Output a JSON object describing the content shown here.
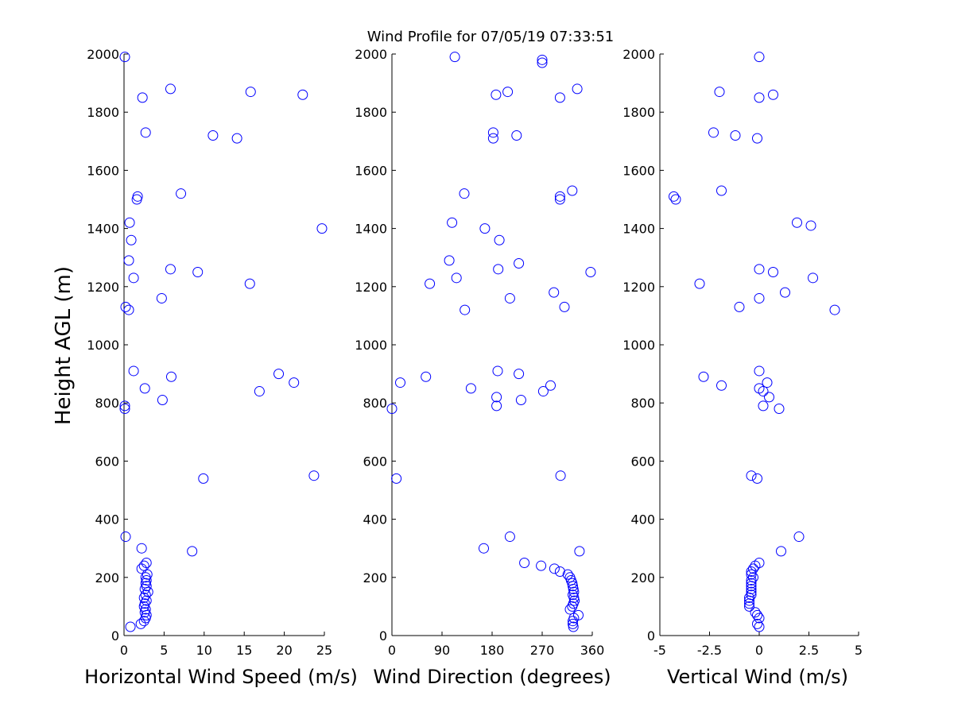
{
  "figure": {
    "title": "Wind Profile for  07/05/19 07:33:51",
    "marker_color": "#0000ff"
  },
  "chart_data": [
    {
      "type": "scatter",
      "xlabel": "Horizontal Wind Speed (m/s)",
      "ylabel": "Height AGL (m)",
      "xlim": [
        0,
        25
      ],
      "ylim": [
        0,
        2000
      ],
      "x_ticks": [
        0,
        5,
        10,
        15,
        20,
        25
      ],
      "x_tick_labels": [
        "0",
        "5",
        "10",
        "15",
        "20",
        "25"
      ],
      "y_ticks": [
        0,
        200,
        400,
        600,
        800,
        1000,
        1200,
        1400,
        1600,
        1800,
        2000
      ],
      "y_tick_labels": [
        "0",
        "200",
        "400",
        "600",
        "800",
        "1000",
        "1200",
        "1400",
        "1600",
        "1800",
        "2000"
      ],
      "grid": false,
      "points": [
        [
          0.1,
          1990
        ],
        [
          5.8,
          1880
        ],
        [
          2.3,
          1850
        ],
        [
          15.8,
          1870
        ],
        [
          22.3,
          1860
        ],
        [
          2.7,
          1730
        ],
        [
          11.1,
          1720
        ],
        [
          14.1,
          1710
        ],
        [
          1.7,
          1510
        ],
        [
          1.6,
          1500
        ],
        [
          7.1,
          1520
        ],
        [
          0.7,
          1420
        ],
        [
          24.7,
          1400
        ],
        [
          0.9,
          1360
        ],
        [
          0.6,
          1290
        ],
        [
          5.8,
          1260
        ],
        [
          9.2,
          1250
        ],
        [
          1.2,
          1230
        ],
        [
          15.7,
          1210
        ],
        [
          4.7,
          1160
        ],
        [
          0.2,
          1130
        ],
        [
          0.6,
          1120
        ],
        [
          1.2,
          910
        ],
        [
          5.9,
          890
        ],
        [
          19.3,
          900
        ],
        [
          2.6,
          850
        ],
        [
          21.2,
          870
        ],
        [
          16.9,
          840
        ],
        [
          4.8,
          810
        ],
        [
          0.1,
          790
        ],
        [
          0.1,
          780
        ],
        [
          9.9,
          540
        ],
        [
          23.7,
          550
        ],
        [
          0.2,
          340
        ],
        [
          2.2,
          300
        ],
        [
          8.5,
          290
        ],
        [
          2.8,
          250
        ],
        [
          2.5,
          240
        ],
        [
          2.2,
          230
        ],
        [
          2.9,
          210
        ],
        [
          2.7,
          200
        ],
        [
          2.8,
          190
        ],
        [
          2.7,
          180
        ],
        [
          2.8,
          170
        ],
        [
          2.6,
          160
        ],
        [
          3.0,
          150
        ],
        [
          2.7,
          140
        ],
        [
          2.5,
          130
        ],
        [
          2.8,
          120
        ],
        [
          2.6,
          110
        ],
        [
          2.5,
          100
        ],
        [
          2.7,
          90
        ],
        [
          2.6,
          80
        ],
        [
          2.8,
          70
        ],
        [
          2.7,
          60
        ],
        [
          2.5,
          50
        ],
        [
          2.1,
          40
        ],
        [
          0.8,
          30
        ]
      ]
    },
    {
      "type": "scatter",
      "xlabel": "Wind Direction (degrees)",
      "ylabel": "",
      "xlim": [
        0,
        360
      ],
      "ylim": [
        0,
        2000
      ],
      "x_ticks": [
        0,
        90,
        180,
        270,
        360
      ],
      "x_tick_labels": [
        "0",
        "90",
        "180",
        "270",
        "360"
      ],
      "y_ticks": [
        0,
        200,
        400,
        600,
        800,
        1000,
        1200,
        1400,
        1600,
        1800,
        2000
      ],
      "y_tick_labels": [
        "0",
        "200",
        "400",
        "600",
        "800",
        "1000",
        "1200",
        "1400",
        "1600",
        "1800",
        "2000"
      ],
      "grid": false,
      "points": [
        [
          113,
          1990
        ],
        [
          270,
          1980
        ],
        [
          270,
          1970
        ],
        [
          333,
          1880
        ],
        [
          187,
          1860
        ],
        [
          208,
          1870
        ],
        [
          302,
          1850
        ],
        [
          182,
          1730
        ],
        [
          182,
          1710
        ],
        [
          224,
          1720
        ],
        [
          130,
          1520
        ],
        [
          324,
          1530
        ],
        [
          302,
          1510
        ],
        [
          302,
          1500
        ],
        [
          108,
          1420
        ],
        [
          167,
          1400
        ],
        [
          193,
          1360
        ],
        [
          103,
          1290
        ],
        [
          191,
          1260
        ],
        [
          228,
          1280
        ],
        [
          357,
          1250
        ],
        [
          116,
          1230
        ],
        [
          68,
          1210
        ],
        [
          291,
          1180
        ],
        [
          212,
          1160
        ],
        [
          131,
          1120
        ],
        [
          310,
          1130
        ],
        [
          190,
          910
        ],
        [
          61,
          890
        ],
        [
          228,
          900
        ],
        [
          15,
          870
        ],
        [
          142,
          850
        ],
        [
          285,
          860
        ],
        [
          188,
          820
        ],
        [
          272,
          840
        ],
        [
          188,
          790
        ],
        [
          232,
          810
        ],
        [
          0,
          780
        ],
        [
          8,
          540
        ],
        [
          303,
          550
        ],
        [
          212,
          340
        ],
        [
          165,
          300
        ],
        [
          337,
          290
        ],
        [
          238,
          250
        ],
        [
          268,
          240
        ],
        [
          292,
          230
        ],
        [
          302,
          220
        ],
        [
          316,
          210
        ],
        [
          320,
          200
        ],
        [
          322,
          190
        ],
        [
          324,
          180
        ],
        [
          325,
          170
        ],
        [
          326,
          160
        ],
        [
          327,
          150
        ],
        [
          325,
          140
        ],
        [
          327,
          130
        ],
        [
          328,
          120
        ],
        [
          326,
          110
        ],
        [
          324,
          100
        ],
        [
          320,
          90
        ],
        [
          335,
          70
        ],
        [
          327,
          60
        ],
        [
          325,
          50
        ],
        [
          325,
          40
        ],
        [
          326,
          30
        ]
      ]
    },
    {
      "type": "scatter",
      "xlabel": "Vertical Wind (m/s)",
      "ylabel": "",
      "xlim": [
        -5,
        5
      ],
      "ylim": [
        0,
        2000
      ],
      "x_ticks": [
        -5,
        -2.5,
        0,
        2.5,
        5
      ],
      "x_tick_labels": [
        "-5",
        "-2.5",
        "0",
        "2.5",
        "5"
      ],
      "y_ticks": [
        0,
        200,
        400,
        600,
        800,
        1000,
        1200,
        1400,
        1600,
        1800,
        2000
      ],
      "y_tick_labels": [
        "0",
        "200",
        "400",
        "600",
        "800",
        "1000",
        "1200",
        "1400",
        "1600",
        "1800",
        "2000"
      ],
      "grid": false,
      "points": [
        [
          0.0,
          1990
        ],
        [
          -2.0,
          1870
        ],
        [
          0.0,
          1850
        ],
        [
          0.7,
          1860
        ],
        [
          -2.3,
          1730
        ],
        [
          -1.2,
          1720
        ],
        [
          -0.1,
          1710
        ],
        [
          -1.9,
          1530
        ],
        [
          -4.3,
          1510
        ],
        [
          -4.2,
          1500
        ],
        [
          1.9,
          1420
        ],
        [
          2.6,
          1410
        ],
        [
          0.0,
          1260
        ],
        [
          0.7,
          1250
        ],
        [
          2.7,
          1230
        ],
        [
          -3.0,
          1210
        ],
        [
          1.3,
          1180
        ],
        [
          0.0,
          1160
        ],
        [
          -1.0,
          1130
        ],
        [
          3.8,
          1120
        ],
        [
          0.0,
          910
        ],
        [
          -2.8,
          890
        ],
        [
          0.4,
          870
        ],
        [
          -1.9,
          860
        ],
        [
          0.0,
          850
        ],
        [
          0.2,
          840
        ],
        [
          0.5,
          820
        ],
        [
          0.2,
          790
        ],
        [
          1.0,
          780
        ],
        [
          -0.4,
          550
        ],
        [
          -0.1,
          540
        ],
        [
          2.0,
          340
        ],
        [
          1.1,
          290
        ],
        [
          0.0,
          250
        ],
        [
          -0.2,
          240
        ],
        [
          -0.3,
          230
        ],
        [
          -0.4,
          220
        ],
        [
          -0.4,
          210
        ],
        [
          -0.3,
          200
        ],
        [
          -0.4,
          190
        ],
        [
          -0.4,
          180
        ],
        [
          -0.4,
          170
        ],
        [
          -0.4,
          160
        ],
        [
          -0.4,
          150
        ],
        [
          -0.4,
          140
        ],
        [
          -0.5,
          130
        ],
        [
          -0.5,
          120
        ],
        [
          -0.5,
          110
        ],
        [
          -0.5,
          100
        ],
        [
          -0.2,
          80
        ],
        [
          -0.1,
          70
        ],
        [
          0.0,
          60
        ],
        [
          -0.1,
          40
        ],
        [
          0.0,
          30
        ]
      ]
    }
  ]
}
